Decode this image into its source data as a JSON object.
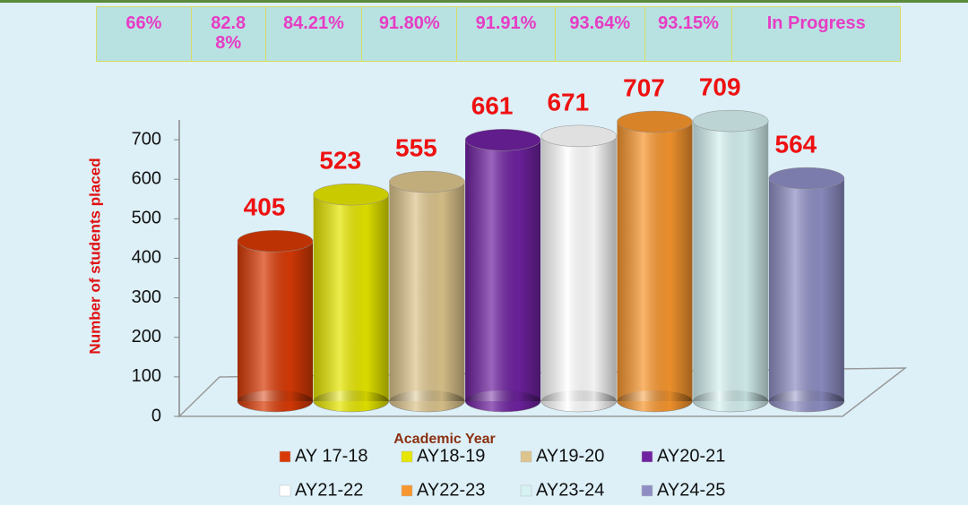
{
  "placement_table": {
    "cells": [
      "66%",
      "82.88%",
      "84.21%",
      "91.80%",
      "91.91%",
      "93.64%",
      "93.15%",
      "In Progress"
    ]
  },
  "chart_data": {
    "type": "bar",
    "y_label": "Number of students placed",
    "x_label": "Academic Year",
    "categories": [
      "AY 17-18",
      "AY18-19",
      "AY19-20",
      "AY20-21",
      "AY21-22",
      "AY22-23",
      "AY23-24",
      "AY24-25"
    ],
    "values": [
      405,
      523,
      555,
      661,
      671,
      707,
      709,
      564
    ],
    "colors": [
      "#d83a06",
      "#e6e600",
      "#dcc48c",
      "#6f22a0",
      "#ffffff",
      "#f7962e",
      "#d6f2f2",
      "#8e8ec4"
    ],
    "ylim": [
      0,
      750
    ],
    "yticks": [
      0,
      100,
      200,
      300,
      400,
      500,
      600,
      700
    ],
    "legend": "bottom"
  }
}
